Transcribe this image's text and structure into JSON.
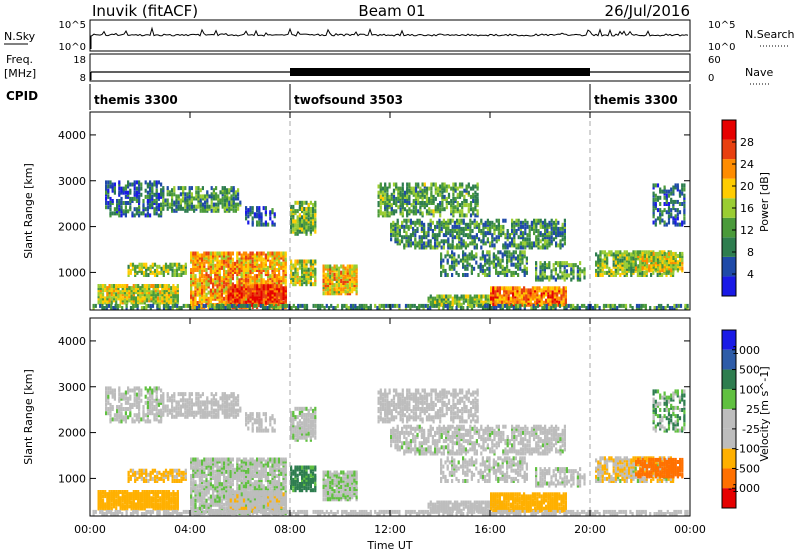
{
  "header": {
    "station": "Inuvik (fitACF)",
    "beam": "Beam 01",
    "date": "26/Jul/2016"
  },
  "colors": {
    "frame": "#000000",
    "ground_scatter": "#bdbdbd",
    "vline": "#aaaaaa"
  },
  "panels": {
    "nsky": {
      "label": "N.Sky",
      "yticks": [
        "10^5",
        "10^0"
      ],
      "right_label": "N.Search",
      "right_ticks": [
        "10^5",
        "10^0"
      ]
    },
    "freq": {
      "label_line1": "Freq.",
      "label_line2": "[MHz]",
      "yticks": [
        "18",
        "8"
      ],
      "right_label": "Nave",
      "right_ticks": [
        "60",
        "0"
      ]
    },
    "cpid": {
      "label": "CPID",
      "segments": [
        {
          "name": "themis 3300",
          "start": 0,
          "end": 8
        },
        {
          "name": "twofsound 3503",
          "start": 8,
          "end": 20
        },
        {
          "name": "themis 3300",
          "start": 20,
          "end": 24
        }
      ]
    }
  },
  "chart_data": [
    {
      "type": "heatmap",
      "title": "",
      "ylabel": "Slant Range [km]",
      "xlabel": "",
      "x_unit": "hours UT",
      "xlim": [
        0,
        24
      ],
      "ylim": [
        180,
        4500
      ],
      "yticks": [
        1000,
        2000,
        3000,
        4000
      ],
      "colorbar": {
        "label": "Power [dB]",
        "ticks": [
          4,
          8,
          12,
          16,
          20,
          24,
          28
        ],
        "range": [
          0,
          32
        ],
        "colors": [
          "#1a1ae6",
          "#1f4aa8",
          "#2e7d4f",
          "#4a9a3a",
          "#9acd32",
          "#ffcc00",
          "#ff8c00",
          "#e84010",
          "#e60000"
        ]
      },
      "vertical_markers_hours": [
        8,
        20
      ]
    },
    {
      "type": "heatmap",
      "title": "",
      "ylabel": "Slant Range [km]",
      "xlabel": "Time UT",
      "x_unit": "hours UT",
      "xlim": [
        0,
        24
      ],
      "ylim": [
        180,
        4500
      ],
      "yticks": [
        1000,
        2000,
        3000,
        4000
      ],
      "xtick_labels": [
        "00:00",
        "04:00",
        "08:00",
        "12:00",
        "16:00",
        "20:00",
        "00:00"
      ],
      "xtick_hours": [
        0,
        4,
        8,
        12,
        16,
        20,
        24
      ],
      "colorbar": {
        "label": "Velocity [m s^-1]",
        "tick_labels": [
          "1000",
          "500",
          "100",
          "25",
          "-25",
          "-100",
          "-500",
          "-1000"
        ],
        "colors": [
          "#1a1ae6",
          "#2e5ca8",
          "#2e7d4f",
          "#60c040",
          "#bdbdbd",
          "#bdbdbd",
          "#ffb000",
          "#ff7000",
          "#e60000"
        ]
      },
      "vertical_markers_hours": [
        8,
        20
      ]
    }
  ]
}
